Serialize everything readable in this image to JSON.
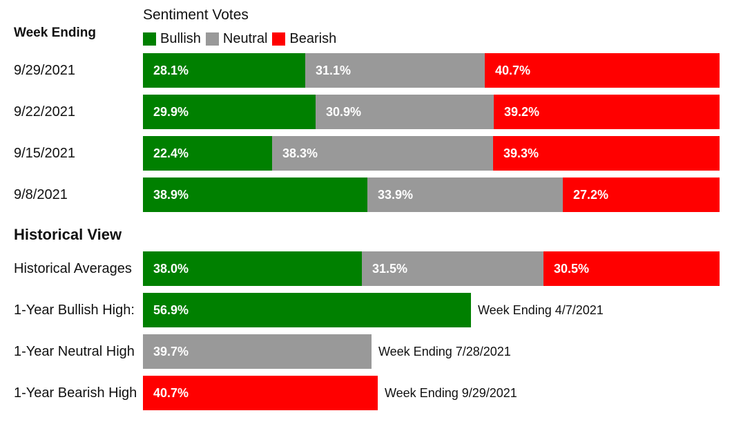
{
  "colors": {
    "bullish": "#008000",
    "neutral": "#999999",
    "bearish": "#ff0000"
  },
  "header": {
    "title": "Sentiment Votes",
    "week_ending_label": "Week Ending"
  },
  "legend": [
    "Bullish",
    "Neutral",
    "Bearish"
  ],
  "historical_heading": "Historical View",
  "chart_data": {
    "type": "bar",
    "stacked": true,
    "orientation": "horizontal",
    "title": "Sentiment Votes",
    "legend_position": "top",
    "weekly": [
      {
        "label": "9/29/2021",
        "values": [
          "28.1%",
          "31.1%",
          "40.7%"
        ],
        "numbers": [
          28.1,
          31.1,
          40.7
        ]
      },
      {
        "label": "9/22/2021",
        "values": [
          "29.9%",
          "30.9%",
          "39.2%"
        ],
        "numbers": [
          29.9,
          30.9,
          39.2
        ]
      },
      {
        "label": "9/15/2021",
        "values": [
          "22.4%",
          "38.3%",
          "39.3%"
        ],
        "numbers": [
          22.4,
          38.3,
          39.3
        ]
      },
      {
        "label": "9/8/2021",
        "values": [
          "38.9%",
          "33.9%",
          "27.2%"
        ],
        "numbers": [
          38.9,
          33.9,
          27.2
        ]
      }
    ],
    "historical_averages": {
      "label": "Historical Averages",
      "values": [
        "38.0%",
        "31.5%",
        "30.5%"
      ],
      "numbers": [
        38.0,
        31.5,
        30.5
      ]
    },
    "highs": [
      {
        "label": "1-Year Bullish High:",
        "value": "56.9%",
        "number": 56.9,
        "sentiment": "bullish",
        "note": "Week Ending 4/7/2021"
      },
      {
        "label": "1-Year Neutral High",
        "value": "39.7%",
        "number": 39.7,
        "sentiment": "neutral",
        "note": "Week Ending 7/28/2021"
      },
      {
        "label": "1-Year Bearish High",
        "value": "40.7%",
        "number": 40.7,
        "sentiment": "bearish",
        "note": "Week Ending 9/29/2021"
      }
    ]
  }
}
